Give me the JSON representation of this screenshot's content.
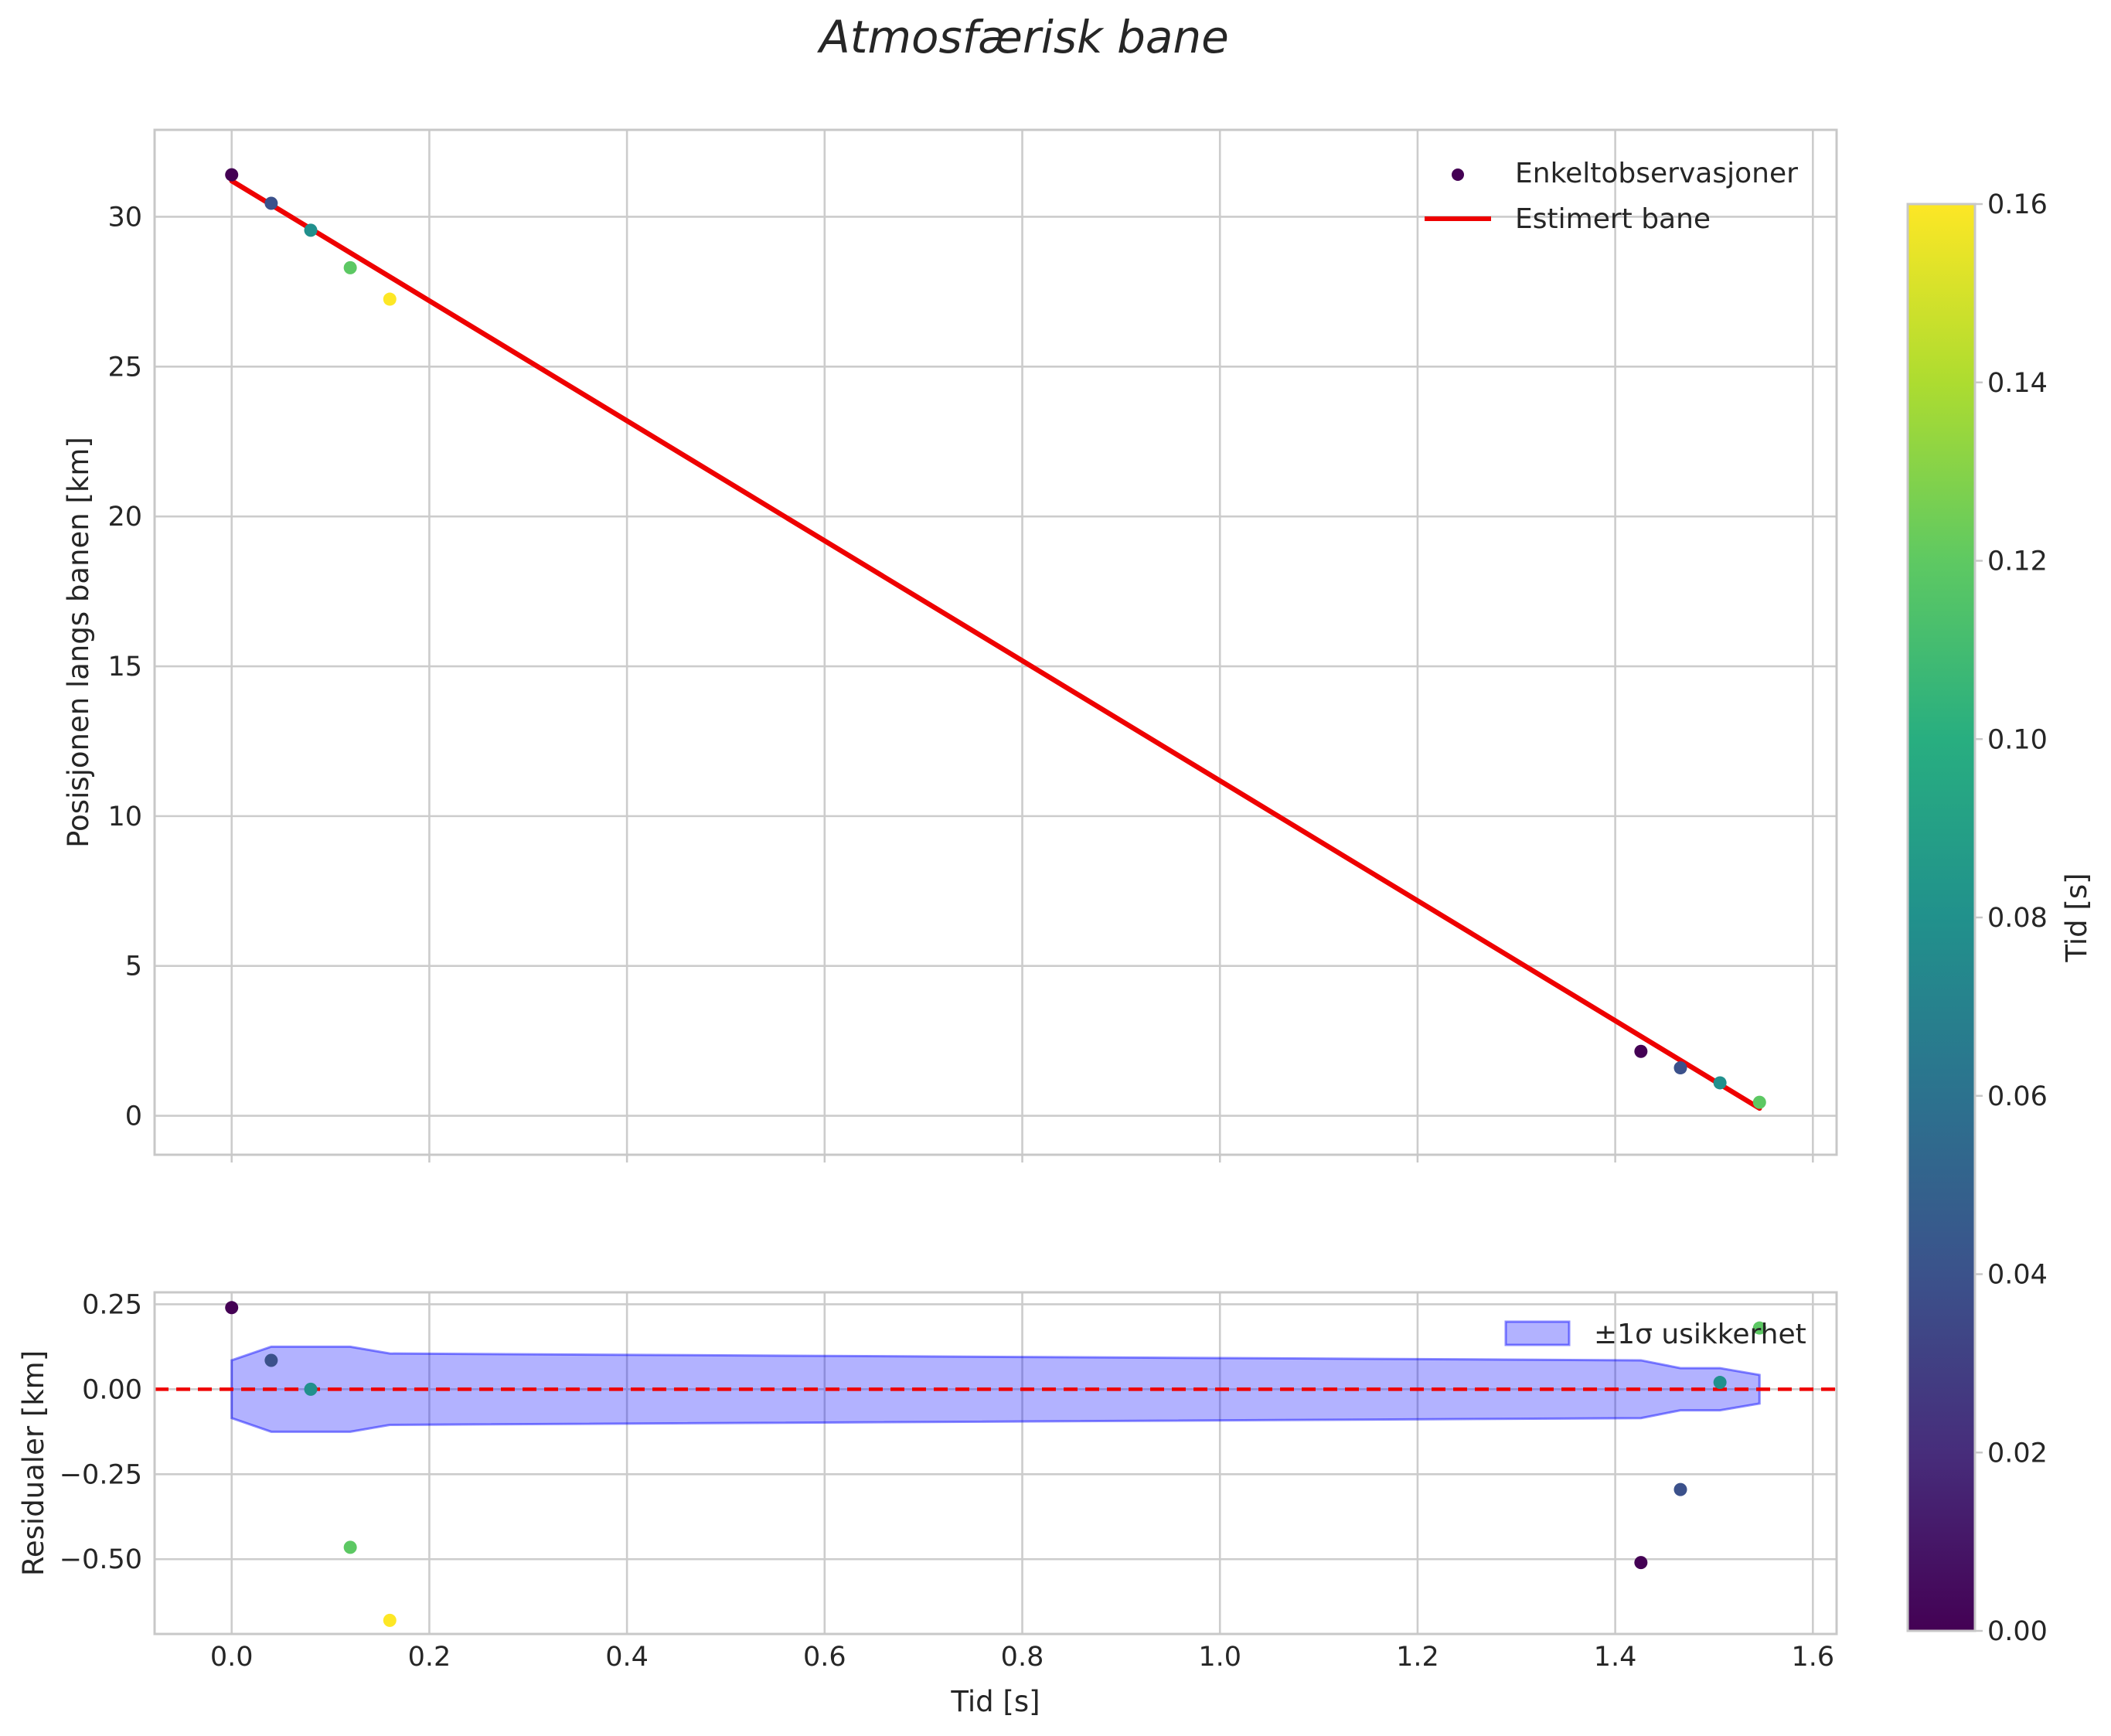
{
  "title": "Atmosfærisk bane",
  "chart_data": [
    {
      "type": "scatter",
      "name": "main-panel",
      "ylabel": "Posisjonen langs banen [km]",
      "xlim": [
        -0.078,
        1.624
      ],
      "ylim": [
        -1.3,
        32.9
      ],
      "xticks": [
        0.0,
        0.2,
        0.4,
        0.6,
        0.8,
        1.0,
        1.2,
        1.4,
        1.6
      ],
      "yticks": [
        0,
        5,
        10,
        15,
        20,
        25,
        30
      ],
      "ytick_labels": [
        "0",
        "5",
        "10",
        "15",
        "20",
        "25",
        "30"
      ],
      "grid": true,
      "legend": "top-right",
      "series": [
        {
          "name": "Enkeltobservasjoner",
          "kind": "scatter",
          "x": [
            0.0,
            0.04,
            0.08,
            0.12,
            0.16,
            1.426,
            1.466,
            1.506,
            1.546
          ],
          "y": [
            31.4,
            30.45,
            29.55,
            28.3,
            27.25,
            2.15,
            1.6,
            1.1,
            0.45
          ],
          "c": [
            0.0,
            0.04,
            0.08,
            0.12,
            0.16,
            0.0,
            0.04,
            0.08,
            0.12
          ]
        },
        {
          "name": "Estimert bane",
          "kind": "line",
          "color": "#ee0000",
          "x": [
            0.0,
            1.546
          ],
          "y": [
            31.2,
            0.25
          ]
        }
      ]
    },
    {
      "type": "scatter",
      "name": "residual-panel",
      "xlabel": "Tid [s]",
      "ylabel": "Residualer [km]",
      "xlim": [
        -0.078,
        1.624
      ],
      "ylim": [
        -0.72,
        0.285
      ],
      "xticks": [
        0.0,
        0.2,
        0.4,
        0.6,
        0.8,
        1.0,
        1.2,
        1.4,
        1.6
      ],
      "xtick_labels": [
        "0.0",
        "0.2",
        "0.4",
        "0.6",
        "0.8",
        "1.0",
        "1.2",
        "1.4",
        "1.6"
      ],
      "yticks": [
        0.25,
        0.0,
        -0.25,
        -0.5
      ],
      "ytick_labels": [
        "0.25",
        "0.00",
        "−0.25",
        "−0.50"
      ],
      "grid": true,
      "legend": "top-right",
      "zero_line": {
        "value": 0.0,
        "color": "#ee0000",
        "style": "dashed"
      },
      "band": {
        "name": "±1σ usikkerhet",
        "color": "#0000ff",
        "x": [
          0.0,
          0.04,
          0.08,
          0.12,
          0.16,
          1.426,
          1.466,
          1.506,
          1.546
        ],
        "upper": [
          0.085,
          0.125,
          0.125,
          0.125,
          0.105,
          0.085,
          0.062,
          0.062,
          0.042
        ],
        "lower": [
          -0.085,
          -0.125,
          -0.125,
          -0.125,
          -0.105,
          -0.085,
          -0.062,
          -0.062,
          -0.042
        ]
      },
      "series": [
        {
          "kind": "scatter",
          "x": [
            0.0,
            0.04,
            0.08,
            0.12,
            0.16,
            1.426,
            1.466,
            1.506,
            1.546
          ],
          "y": [
            0.24,
            0.085,
            0.0,
            -0.465,
            -0.68,
            -0.51,
            -0.295,
            0.02,
            0.18
          ],
          "c": [
            0.0,
            0.04,
            0.08,
            0.12,
            0.16,
            0.0,
            0.04,
            0.08,
            0.12
          ]
        }
      ]
    }
  ],
  "colorbar": {
    "label": "Tid [s]",
    "colormap": "viridis",
    "range": [
      0.0,
      0.16
    ],
    "ticks": [
      0.0,
      0.02,
      0.04,
      0.06,
      0.08,
      0.1,
      0.12,
      0.14,
      0.16
    ],
    "tick_labels": [
      "0.00",
      "0.02",
      "0.04",
      "0.06",
      "0.08",
      "0.10",
      "0.12",
      "0.14",
      "0.16"
    ]
  }
}
